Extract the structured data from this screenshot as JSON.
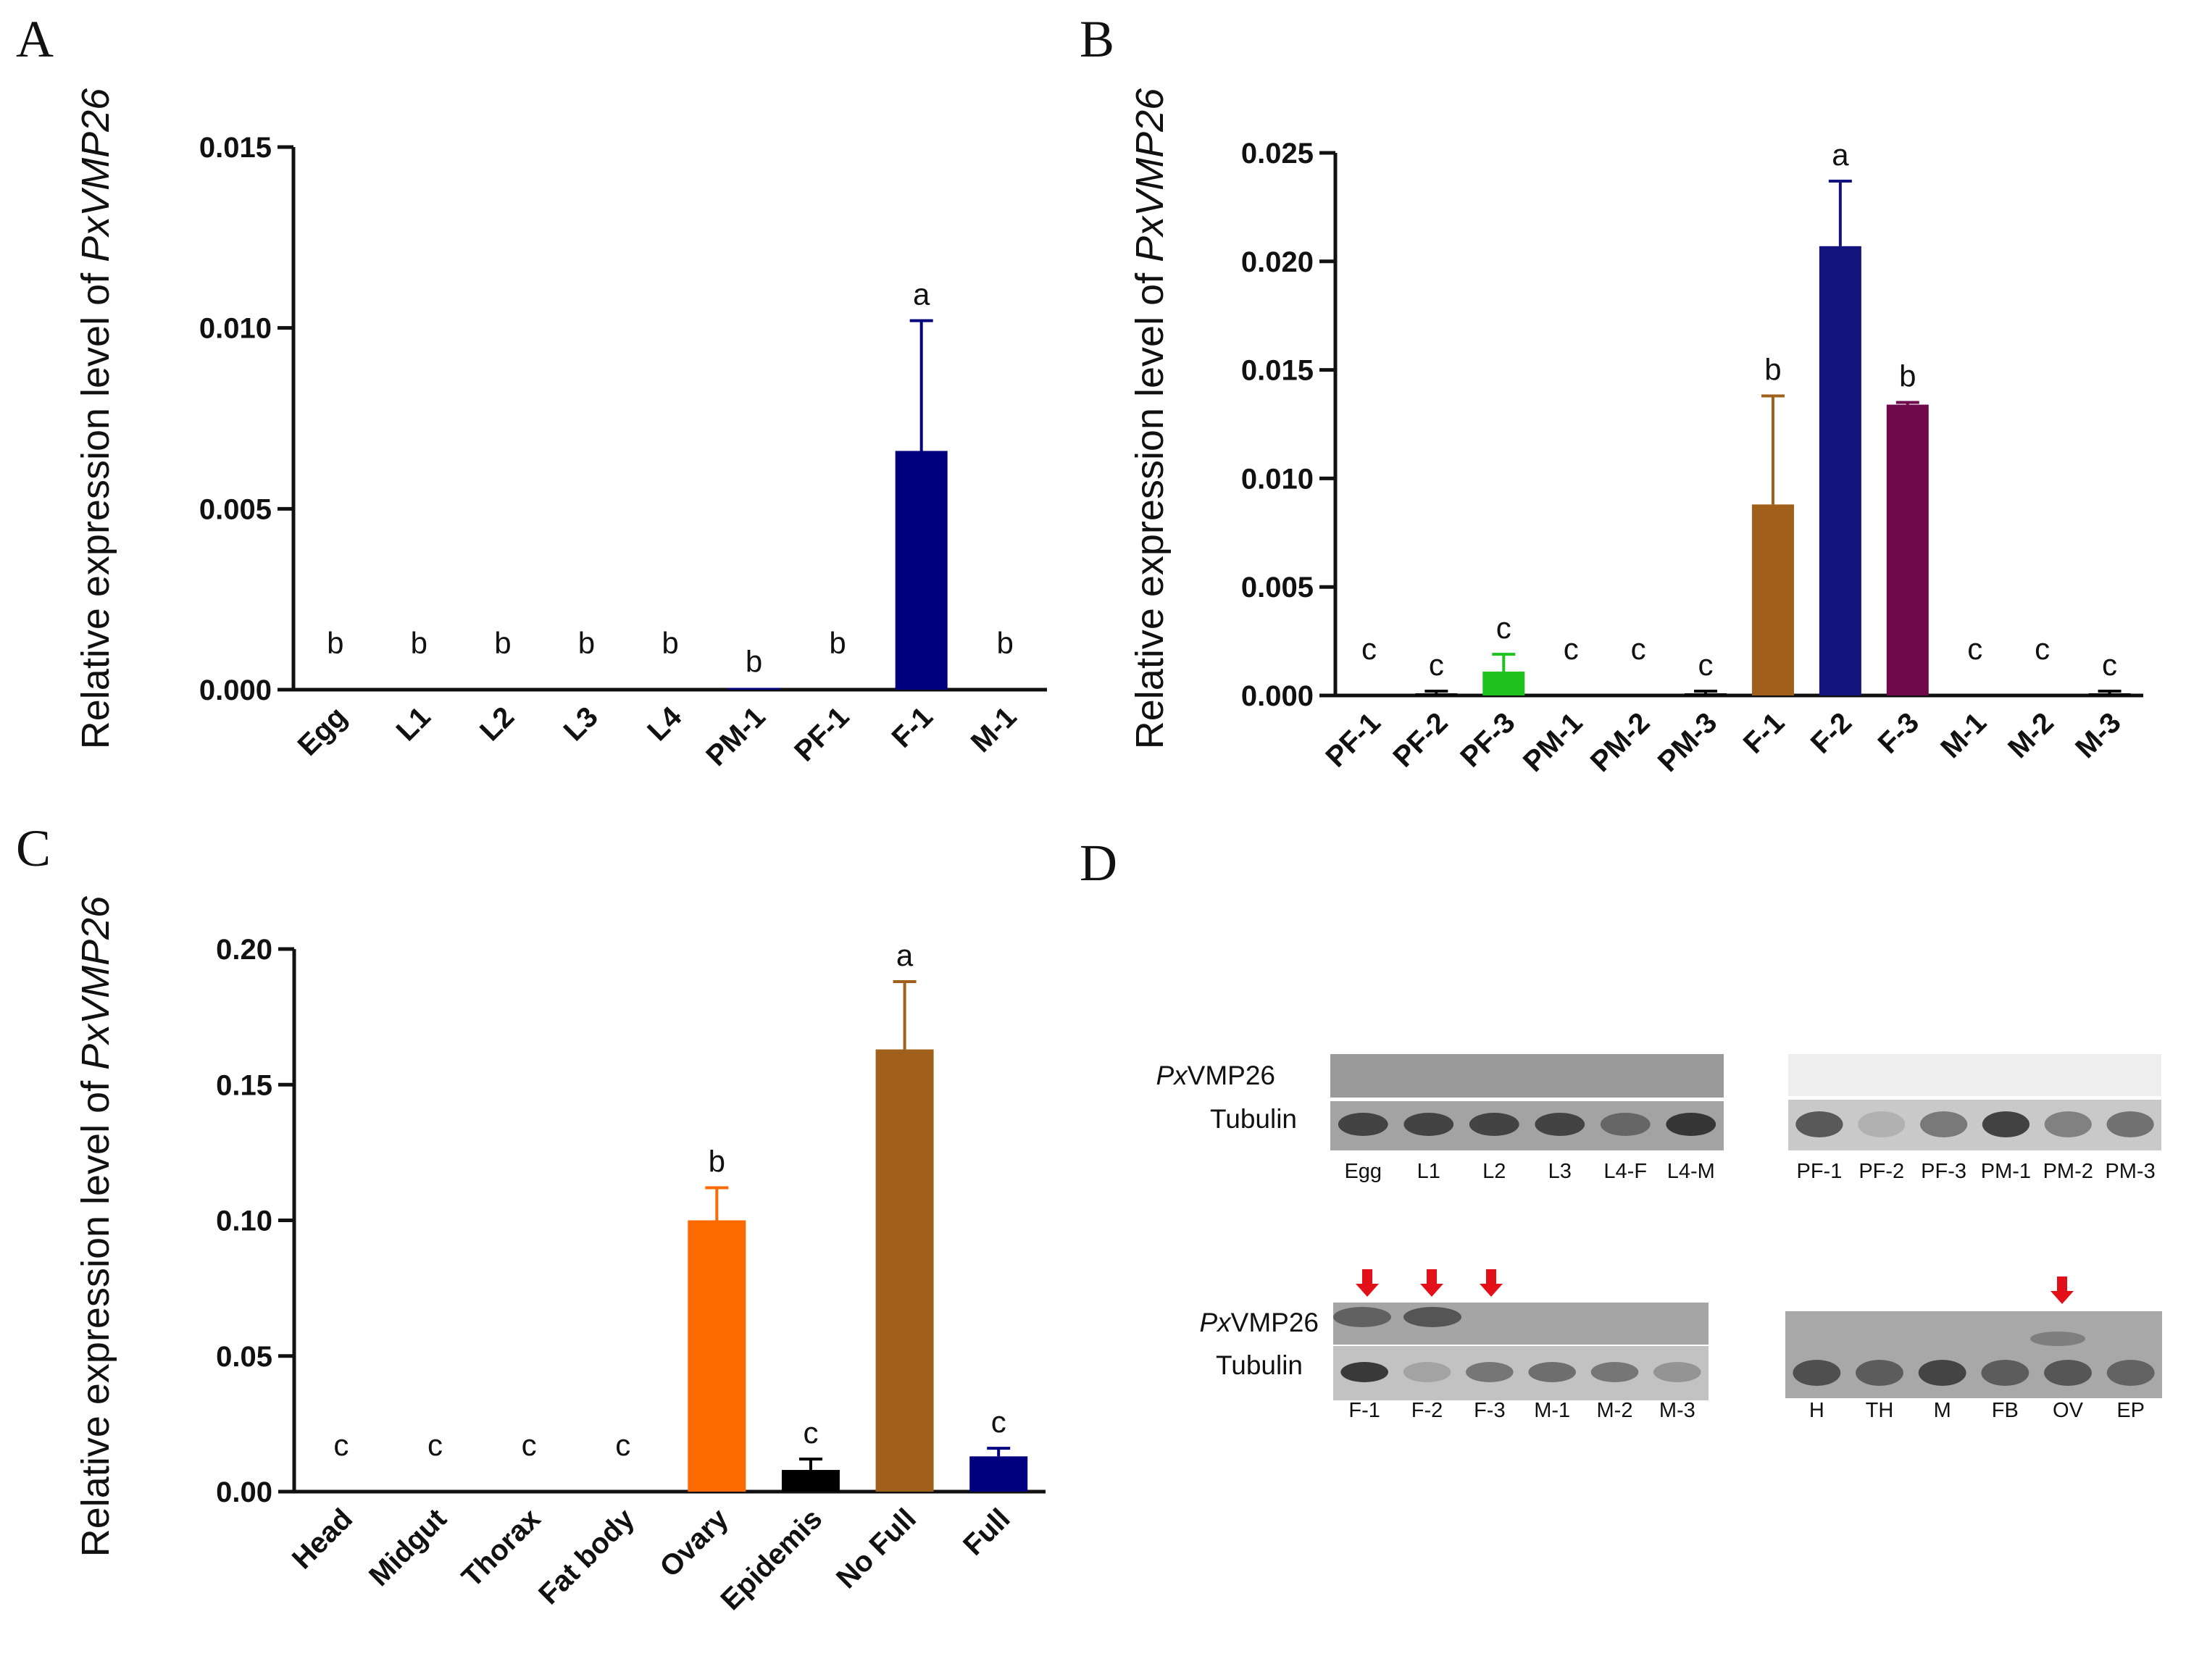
{
  "chart_data": [
    {
      "panel": "A",
      "type": "bar",
      "ylabel_prefix": "Relative expression level of ",
      "ylabel_gene": "PxVMP26",
      "ylim": [
        0,
        0.015
      ],
      "yticks": [
        "0.000",
        "0.005",
        "0.010",
        "0.015"
      ],
      "categories": [
        "Egg",
        "L1",
        "L2",
        "L3",
        "L4",
        "PM-1",
        "PF-1",
        "F-1",
        "M-1"
      ],
      "values": [
        0,
        0,
        0,
        0,
        0,
        5e-05,
        0,
        0.0066,
        0
      ],
      "errors": [
        0,
        0,
        0,
        0,
        0,
        0,
        0,
        0.0036,
        0
      ],
      "colors": [
        "#00007f",
        "#00007f",
        "#00007f",
        "#00007f",
        "#00007f",
        "#00007f",
        "#00007f",
        "#00007f",
        "#00007f"
      ],
      "significance": [
        "b",
        "b",
        "b",
        "b",
        "b",
        "b",
        "b",
        "a",
        "b"
      ]
    },
    {
      "panel": "B",
      "type": "bar",
      "ylabel_prefix": "Relative expression level of ",
      "ylabel_gene": "PxVMP26",
      "ylim": [
        0,
        0.025
      ],
      "yticks": [
        "0.000",
        "0.005",
        "0.010",
        "0.015",
        "0.020",
        "0.025"
      ],
      "categories": [
        "PF-1",
        "PF-2",
        "PF-3",
        "PM-1",
        "PM-2",
        "PM-3",
        "F-1",
        "F-2",
        "F-3",
        "M-1",
        "M-2",
        "M-3"
      ],
      "values": [
        0,
        0.0001,
        0.0011,
        0,
        0,
        0.0001,
        0.0088,
        0.0207,
        0.0134,
        0,
        0,
        0.0001
      ],
      "errors": [
        0,
        0.0001,
        0.0008,
        0,
        0,
        0.0001,
        0.005,
        0.003,
        0.0001,
        0,
        0,
        0.0001
      ],
      "colors": [
        "#000000",
        "#000000",
        "#1fc21f",
        "#000000",
        "#000000",
        "#000000",
        "#a0601b",
        "#14147f",
        "#6e0a4b",
        "#000000",
        "#000000",
        "#000000"
      ],
      "significance": [
        "c",
        "c",
        "c",
        "c",
        "c",
        "c",
        "b",
        "a",
        "b",
        "c",
        "c",
        "c"
      ]
    },
    {
      "panel": "C",
      "type": "bar",
      "ylabel_prefix": "Relative expression level of ",
      "ylabel_gene": "PxVMP26",
      "ylim": [
        0,
        0.2
      ],
      "yticks": [
        "0.00",
        "0.05",
        "0.10",
        "0.15",
        "0.20"
      ],
      "categories": [
        "Head",
        "Midgut",
        "Thorax",
        "Fat body",
        "Ovary",
        "Epidemis",
        "No Full",
        "Full"
      ],
      "values": [
        0,
        0,
        0,
        0,
        0.1,
        0.008,
        0.163,
        0.013
      ],
      "errors": [
        0,
        0,
        0,
        0,
        0.012,
        0.004,
        0.025,
        0.003
      ],
      "colors": [
        "#000000",
        "#000000",
        "#000000",
        "#000000",
        "#ff6a00",
        "#000000",
        "#a0601b",
        "#00007f"
      ],
      "significance": [
        "c",
        "c",
        "c",
        "c",
        "b",
        "c",
        "a",
        "c"
      ]
    }
  ],
  "panels": {
    "a": "A",
    "b": "B",
    "c": "C",
    "d": "D"
  },
  "blots": {
    "gene_prefix": "Px",
    "gene_suffix": "VMP26",
    "tubulin": "Tubulin",
    "blot1_lanes": [
      "Egg",
      "L1",
      "L2",
      "L3",
      "L4-F",
      "L4-M"
    ],
    "blot2_lanes": [
      "PF-1",
      "PF-2",
      "PF-3",
      "PM-1",
      "PM-2",
      "PM-3"
    ],
    "blot3_lanes": [
      "F-1",
      "F-2",
      "F-3",
      "M-1",
      "M-2",
      "M-3"
    ],
    "blot4_lanes": [
      "H",
      "TH",
      "M",
      "FB",
      "OV",
      "EP"
    ],
    "arrow_color": "#e3101a"
  }
}
